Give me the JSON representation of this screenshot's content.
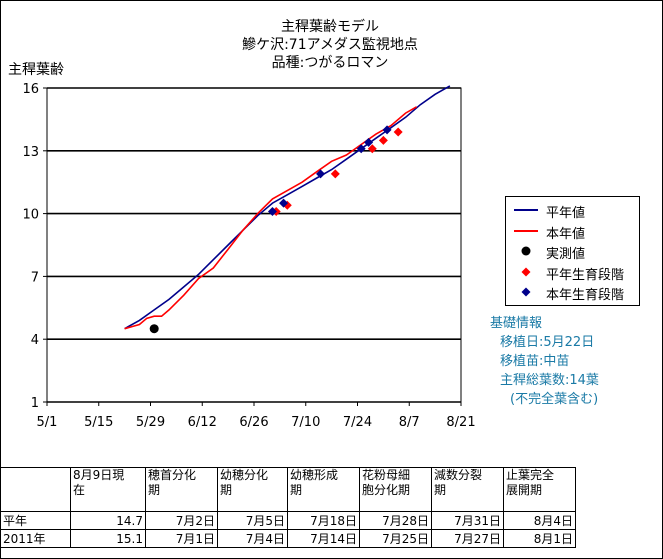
{
  "chart_data": {
    "type": "line",
    "title": [
      "主稈葉齢モデル",
      "鰺ケ沢:71アメダス監視地点",
      "品種:つがるロマン"
    ],
    "ylabel": "主稈葉齢",
    "xlabel": "",
    "ylim": [
      1,
      16
    ],
    "yticks": [
      "1",
      "4",
      "7",
      "10",
      "13",
      "16"
    ],
    "xlim": [
      "5/1",
      "8/21"
    ],
    "xticks": [
      "5/1",
      "5/15",
      "5/29",
      "6/12",
      "6/26",
      "7/10",
      "7/24",
      "8/7",
      "8/21"
    ],
    "grid": "horizontal",
    "legend_position": "right",
    "series": [
      {
        "name": "平年値",
        "color": "#00008b",
        "style": "line",
        "points": [
          [
            "5/22",
            4.5
          ],
          [
            "5/26",
            4.9
          ],
          [
            "5/30",
            5.4
          ],
          [
            "6/3",
            5.9
          ],
          [
            "6/7",
            6.5
          ],
          [
            "6/11",
            7.1
          ],
          [
            "6/15",
            7.8
          ],
          [
            "6/19",
            8.5
          ],
          [
            "6/23",
            9.2
          ],
          [
            "6/27",
            9.9
          ],
          [
            "7/1",
            10.5
          ],
          [
            "7/5",
            10.9
          ],
          [
            "7/9",
            11.3
          ],
          [
            "7/13",
            11.7
          ],
          [
            "7/17",
            12.1
          ],
          [
            "7/21",
            12.6
          ],
          [
            "7/25",
            13.1
          ],
          [
            "7/29",
            13.6
          ],
          [
            "8/2",
            14.1
          ],
          [
            "8/6",
            14.6
          ],
          [
            "8/10",
            15.2
          ],
          [
            "8/14",
            15.7
          ],
          [
            "8/18",
            16.1
          ]
        ]
      },
      {
        "name": "本年値",
        "color": "#ff0000",
        "style": "line",
        "points": [
          [
            "5/22",
            4.5
          ],
          [
            "5/24",
            4.6
          ],
          [
            "5/26",
            4.7
          ],
          [
            "5/28",
            5.0
          ],
          [
            "5/30",
            5.1
          ],
          [
            "6/1",
            5.1
          ],
          [
            "6/3",
            5.4
          ],
          [
            "6/7",
            6.1
          ],
          [
            "6/11",
            6.9
          ],
          [
            "6/15",
            7.4
          ],
          [
            "6/19",
            8.3
          ],
          [
            "6/23",
            9.2
          ],
          [
            "6/27",
            10.0
          ],
          [
            "7/1",
            10.7
          ],
          [
            "7/5",
            11.1
          ],
          [
            "7/9",
            11.5
          ],
          [
            "7/13",
            12.0
          ],
          [
            "7/17",
            12.5
          ],
          [
            "7/21",
            12.8
          ],
          [
            "7/25",
            13.3
          ],
          [
            "7/29",
            13.8
          ],
          [
            "8/2",
            14.2
          ],
          [
            "8/6",
            14.8
          ],
          [
            "8/9",
            15.1
          ]
        ]
      },
      {
        "name": "実測値",
        "color": "#000000",
        "style": "marker-circle",
        "points": [
          [
            "5/30",
            4.5
          ]
        ]
      },
      {
        "name": "平年生育段階",
        "color": "#ff0000",
        "style": "marker-diamond",
        "points": [
          [
            "7/2",
            10.1
          ],
          [
            "7/5",
            10.4
          ],
          [
            "7/18",
            11.9
          ],
          [
            "7/28",
            13.1
          ],
          [
            "7/31",
            13.5
          ],
          [
            "8/4",
            13.9
          ]
        ]
      },
      {
        "name": "本年生育段階",
        "color": "#00008b",
        "style": "marker-diamond",
        "points": [
          [
            "7/1",
            10.1
          ],
          [
            "7/4",
            10.5
          ],
          [
            "7/14",
            11.9
          ],
          [
            "7/25",
            13.1
          ],
          [
            "7/27",
            13.4
          ],
          [
            "8/1",
            14.0
          ]
        ]
      }
    ]
  },
  "info": {
    "title": "基礎情報",
    "lines": [
      "移植日:5月22日",
      "移植苗:中苗",
      "主稈総葉数:14葉",
      "(不完全葉含む)"
    ]
  },
  "table": {
    "headers": [
      "",
      "8月9日現\n在",
      "穂首分化\n期",
      "幼穂分化\n期",
      "幼穂形成\n期",
      "花粉母細\n胞分化期",
      "減数分裂\n期",
      "止葉完全\n展開期"
    ],
    "rows": [
      [
        "平年",
        "14.7",
        "7月2日",
        "7月5日",
        "7月18日",
        "7月28日",
        "7月31日",
        "8月4日"
      ],
      [
        "2011年",
        "15.1",
        "7月1日",
        "7月4日",
        "7月14日",
        "7月25日",
        "7月27日",
        "8月1日"
      ]
    ]
  }
}
